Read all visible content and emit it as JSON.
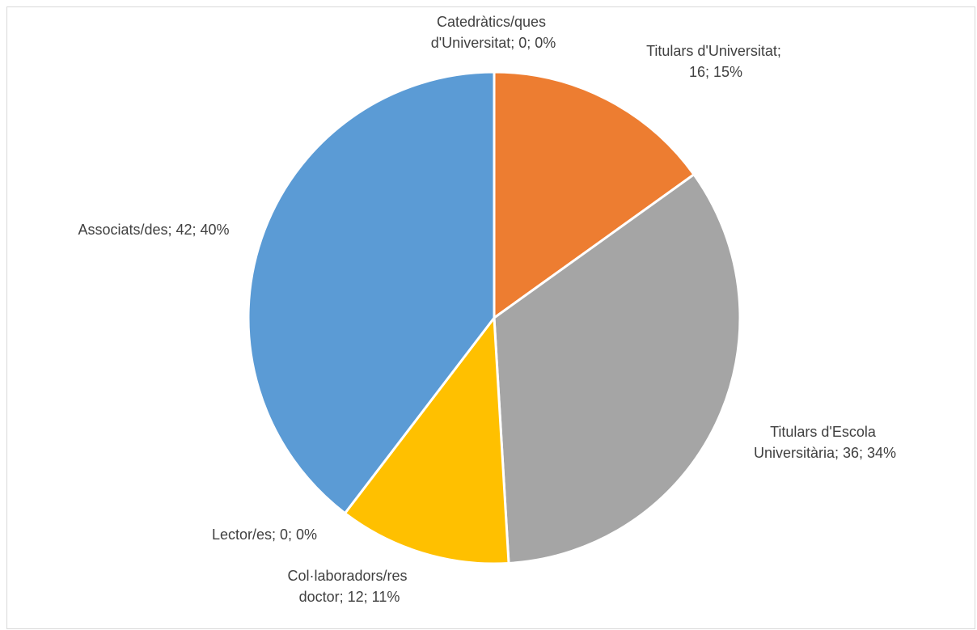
{
  "chart_data": {
    "type": "pie",
    "title": "",
    "start_angle_deg": 0,
    "direction": "clockwise",
    "slices": [
      {
        "label_lines": [
          "Catedràtics/ques",
          "d'Universitat; 0; 0%"
        ],
        "category": "Catedràtics/ques d'Universitat",
        "value": 0,
        "percent": "0%",
        "color": "#4472c4"
      },
      {
        "label_lines": [
          "Titulars d'Universitat;",
          "16; 15%"
        ],
        "category": "Titulars d'Universitat",
        "value": 16,
        "percent": "15%",
        "color": "#ed7d31"
      },
      {
        "label_lines": [
          "Titulars d'Escola",
          "Universitària; 36; 34%"
        ],
        "category": "Titulars d'Escola Universitària",
        "value": 36,
        "percent": "34%",
        "color": "#a5a5a5"
      },
      {
        "label_lines": [
          "Col·laboradors/res",
          "doctor; 12; 11%"
        ],
        "category": "Col·laboradors/res doctor",
        "value": 12,
        "percent": "11%",
        "color": "#ffc000"
      },
      {
        "label_lines": [
          "Lector/es; 0; 0%"
        ],
        "category": "Lector/es",
        "value": 0,
        "percent": "0%",
        "color": "#70ad47"
      },
      {
        "label_lines": [
          "Associats/des; 42; 40%"
        ],
        "category": "Associats/des",
        "value": 42,
        "percent": "40%",
        "color": "#5b9bd5"
      }
    ]
  }
}
